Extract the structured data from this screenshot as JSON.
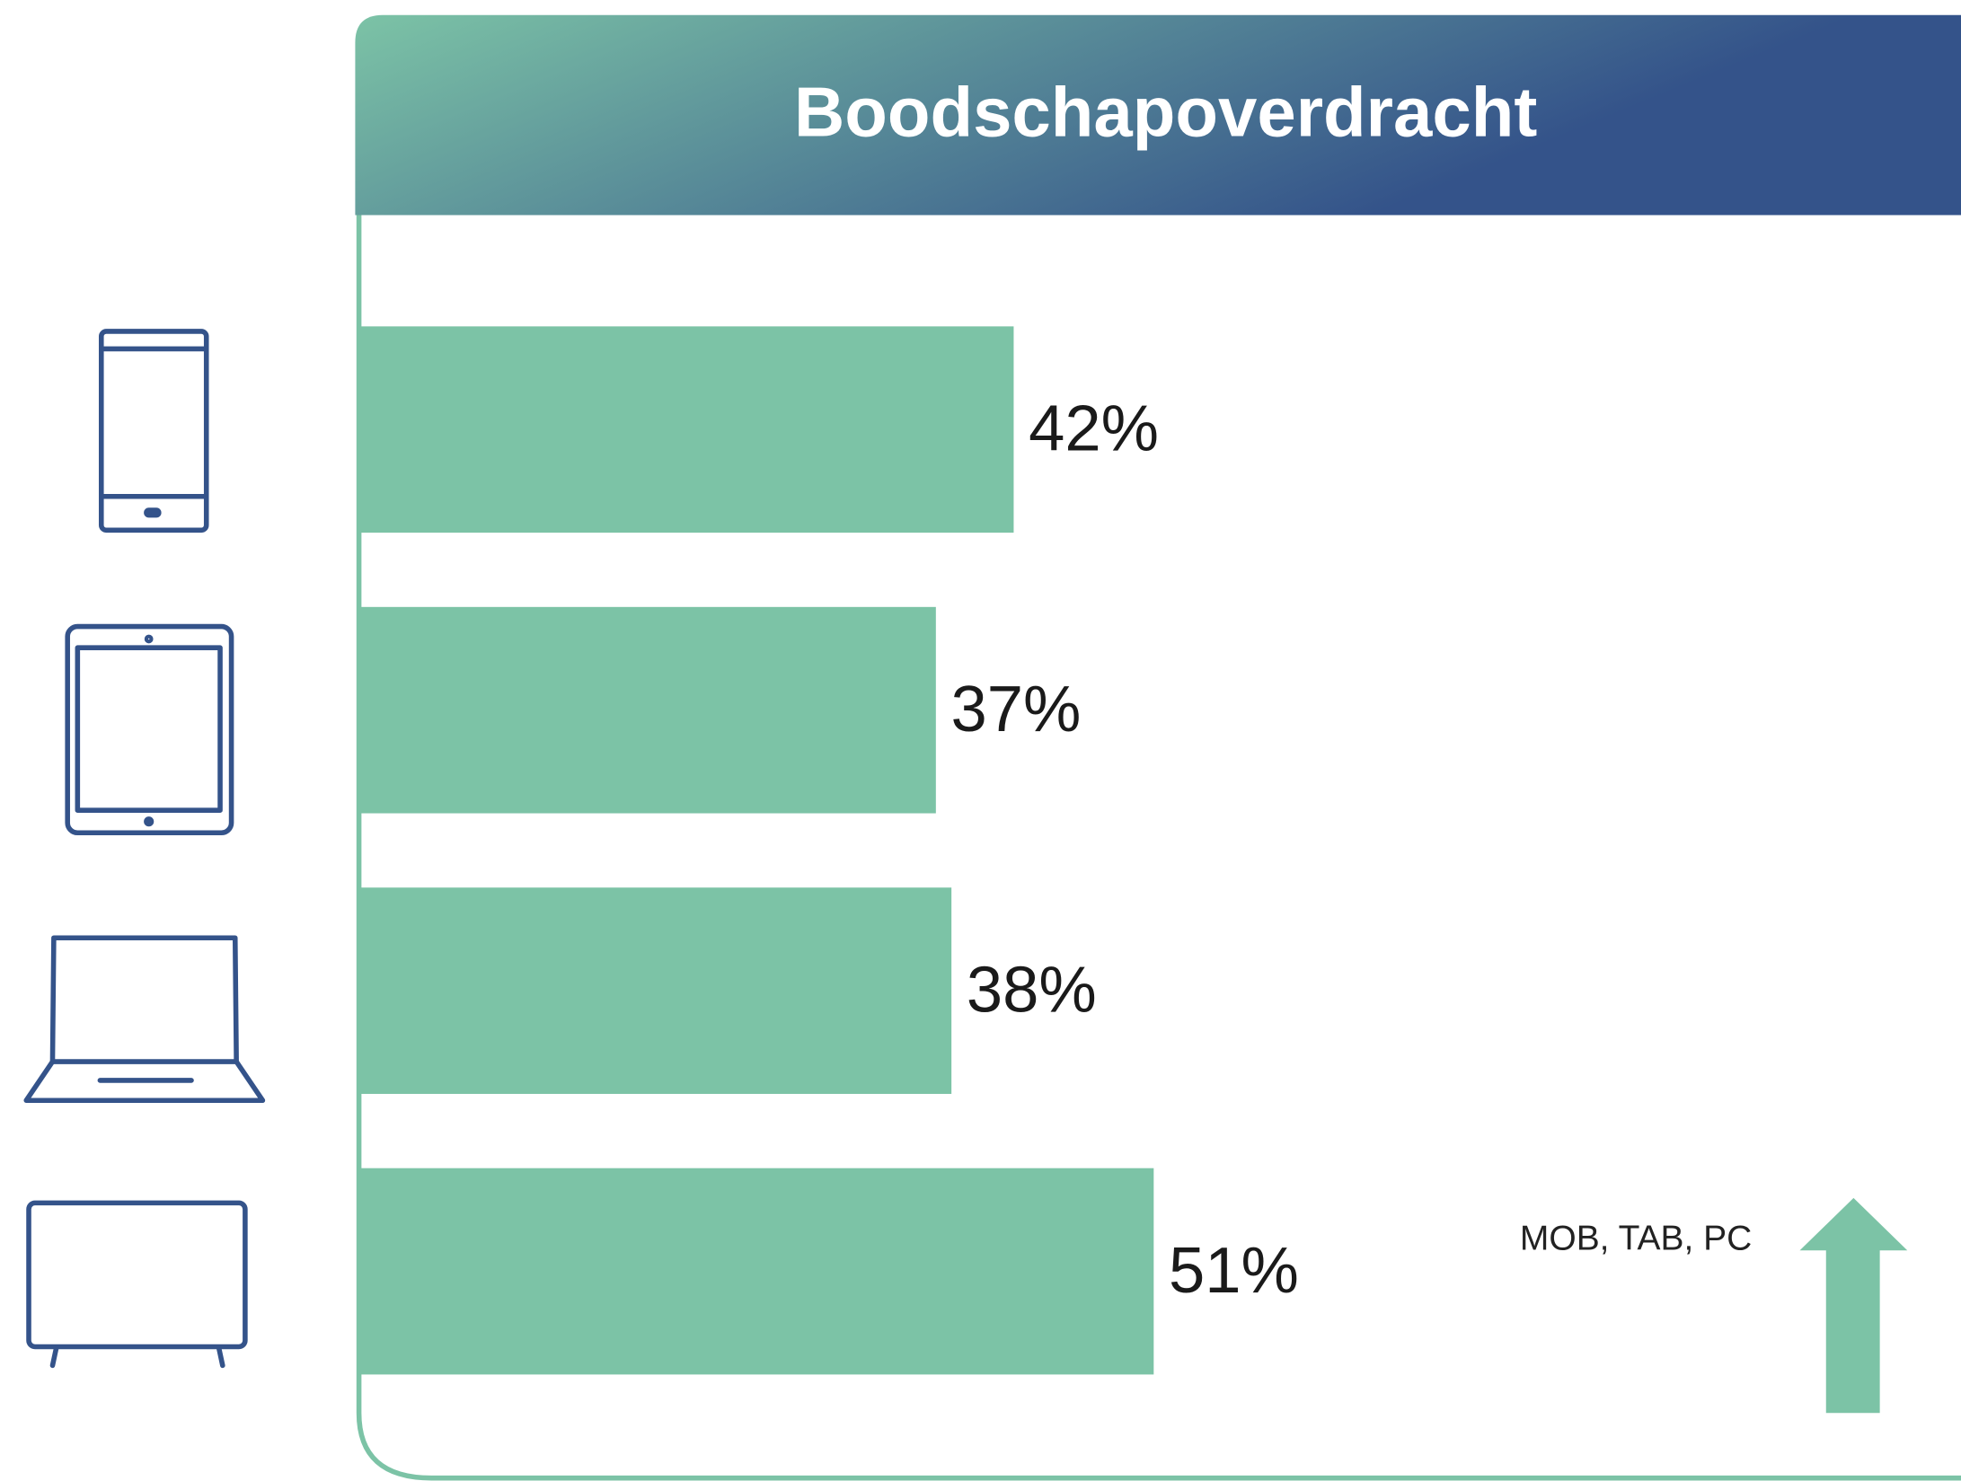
{
  "chart_data": {
    "type": "bar",
    "orientation": "horizontal",
    "title": "Boodschapoverdracht",
    "categories": [
      null,
      null,
      null,
      null
    ],
    "values": [
      42,
      37,
      38,
      51
    ],
    "value_labels": [
      "42%",
      "37%",
      "38%",
      "51%"
    ],
    "color": "#7cc3a6",
    "annotation": "MOB, TAB, PC"
  }
}
